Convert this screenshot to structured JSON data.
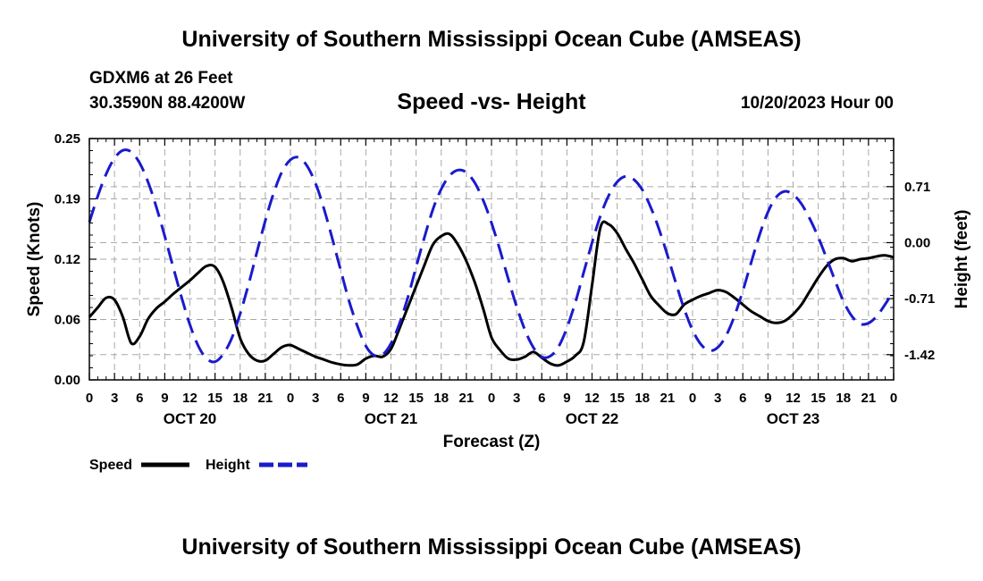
{
  "header": {
    "title": "University of Southern Mississippi Ocean Cube (AMSEAS)",
    "station": "GDXM6 at 26 Feet",
    "coords": "30.3590N  88.4200W",
    "chart_title": "Speed -vs- Height",
    "date": "10/20/2023 Hour 00"
  },
  "footer": {
    "title": "University of Southern Mississippi Ocean Cube (AMSEAS)"
  },
  "colors": {
    "speed": "#000000",
    "height": "#1a1acc",
    "grid": "#a8a8a8"
  },
  "chart_data": {
    "type": "line",
    "title": "Speed -vs- Height",
    "xlabel": "Forecast (Z)",
    "ylabel": "Speed (Knots)",
    "y2label": "Height (feet)",
    "xlim": [
      0,
      96
    ],
    "ylim": [
      0,
      0.25
    ],
    "y2lim": [
      -1.74,
      1.32
    ],
    "y_ticks": [
      "0.00",
      "0.06",
      "0.12",
      "0.19",
      "0.25"
    ],
    "y_tick_values": [
      0,
      0.0625,
      0.125,
      0.1875,
      0.25
    ],
    "y2_ticks": [
      "-1.42",
      "-0.71",
      "0.00",
      "0.71"
    ],
    "y2_tick_values": [
      -1.42,
      -0.71,
      0.0,
      0.71
    ],
    "x_tick_labels": [
      "0",
      "3",
      "6",
      "9",
      "12",
      "15",
      "18",
      "21",
      "0",
      "3",
      "6",
      "9",
      "12",
      "15",
      "18",
      "21",
      "0",
      "3",
      "6",
      "9",
      "12",
      "15",
      "18",
      "21",
      "0",
      "3",
      "6",
      "9",
      "12",
      "15",
      "18",
      "21",
      "0"
    ],
    "day_labels": [
      {
        "label": "OCT 20",
        "hour": 12
      },
      {
        "label": "OCT 21",
        "hour": 36
      },
      {
        "label": "OCT 22",
        "hour": 60
      },
      {
        "label": "OCT 23",
        "hour": 84
      }
    ],
    "legend": [
      {
        "name": "Speed",
        "style": "solid"
      },
      {
        "name": "Height",
        "style": "dashed"
      }
    ],
    "series": [
      {
        "name": "Speed",
        "axis": "left",
        "x": [
          0,
          1,
          2,
          3,
          4,
          5,
          6,
          7,
          8,
          9,
          10,
          11,
          12,
          13,
          14,
          15,
          16,
          17,
          18,
          19,
          20,
          21,
          22,
          23,
          24,
          25,
          26,
          27,
          28,
          29,
          30,
          31,
          32,
          33,
          34,
          35,
          36,
          37,
          38,
          39,
          40,
          41,
          42,
          43,
          44,
          45,
          46,
          47,
          48,
          49,
          50,
          51,
          52,
          53,
          54,
          55,
          56,
          57,
          58,
          59,
          60,
          61,
          62,
          63,
          64,
          65,
          66,
          67,
          68,
          69,
          70,
          71,
          72,
          73,
          74,
          75,
          76,
          77,
          78,
          79,
          80,
          81,
          82,
          83,
          84,
          85,
          86,
          87,
          88,
          89,
          90,
          91,
          92,
          93,
          94,
          95,
          96
        ],
        "values": [
          0.065,
          0.075,
          0.085,
          0.083,
          0.065,
          0.038,
          0.045,
          0.063,
          0.074,
          0.081,
          0.089,
          0.096,
          0.103,
          0.111,
          0.118,
          0.117,
          0.101,
          0.074,
          0.043,
          0.027,
          0.02,
          0.02,
          0.027,
          0.034,
          0.036,
          0.032,
          0.028,
          0.024,
          0.021,
          0.018,
          0.016,
          0.015,
          0.016,
          0.022,
          0.025,
          0.024,
          0.032,
          0.053,
          0.075,
          0.097,
          0.119,
          0.14,
          0.149,
          0.151,
          0.14,
          0.123,
          0.101,
          0.074,
          0.044,
          0.031,
          0.022,
          0.021,
          0.024,
          0.029,
          0.023,
          0.017,
          0.015,
          0.019,
          0.025,
          0.039,
          0.098,
          0.158,
          0.161,
          0.152,
          0.136,
          0.121,
          0.104,
          0.087,
          0.077,
          0.069,
          0.068,
          0.078,
          0.083,
          0.087,
          0.09,
          0.093,
          0.091,
          0.085,
          0.078,
          0.071,
          0.066,
          0.061,
          0.059,
          0.061,
          0.068,
          0.078,
          0.092,
          0.106,
          0.118,
          0.125,
          0.126,
          0.123,
          0.125,
          0.126,
          0.128,
          0.129,
          0.127
        ]
      },
      {
        "name": "Height",
        "axis": "right",
        "x": [
          0,
          1,
          2,
          3,
          4,
          5,
          6,
          7,
          8,
          9,
          10,
          11,
          12,
          13,
          14,
          15,
          16,
          17,
          18,
          19,
          20,
          21,
          22,
          23,
          24,
          25,
          26,
          27,
          28,
          29,
          30,
          31,
          32,
          33,
          34,
          35,
          36,
          37,
          38,
          39,
          40,
          41,
          42,
          43,
          44,
          45,
          46,
          47,
          48,
          49,
          50,
          51,
          52,
          53,
          54,
          55,
          56,
          57,
          58,
          59,
          60,
          61,
          62,
          63,
          64,
          65,
          66,
          67,
          68,
          69,
          70,
          71,
          72,
          73,
          74,
          75,
          76,
          77,
          78,
          79,
          80,
          81,
          82,
          83,
          84,
          85,
          86,
          87,
          88,
          89,
          90,
          91,
          92,
          93,
          94,
          95,
          96
        ],
        "values": [
          0.26,
          0.59,
          0.87,
          1.07,
          1.17,
          1.15,
          1.01,
          0.77,
          0.45,
          0.08,
          -0.31,
          -0.69,
          -1.04,
          -1.31,
          -1.47,
          -1.51,
          -1.41,
          -1.21,
          -0.9,
          -0.53,
          -0.12,
          0.28,
          0.63,
          0.9,
          1.05,
          1.08,
          0.97,
          0.75,
          0.43,
          0.05,
          -0.35,
          -0.74,
          -1.06,
          -1.31,
          -1.43,
          -1.42,
          -1.28,
          -1.03,
          -0.7,
          -0.31,
          0.07,
          0.42,
          0.68,
          0.85,
          0.92,
          0.89,
          0.76,
          0.54,
          0.25,
          -0.09,
          -0.46,
          -0.81,
          -1.11,
          -1.33,
          -1.45,
          -1.44,
          -1.32,
          -1.08,
          -0.76,
          -0.38,
          0.0,
          0.34,
          0.6,
          0.77,
          0.84,
          0.8,
          0.67,
          0.45,
          0.17,
          -0.16,
          -0.51,
          -0.84,
          -1.11,
          -1.29,
          -1.37,
          -1.33,
          -1.18,
          -0.93,
          -0.61,
          -0.25,
          0.1,
          0.39,
          0.58,
          0.65,
          0.61,
          0.49,
          0.3,
          0.07,
          -0.2,
          -0.48,
          -0.74,
          -0.93,
          -1.03,
          -1.02,
          -0.93,
          -0.78,
          -0.61
        ]
      }
    ]
  }
}
